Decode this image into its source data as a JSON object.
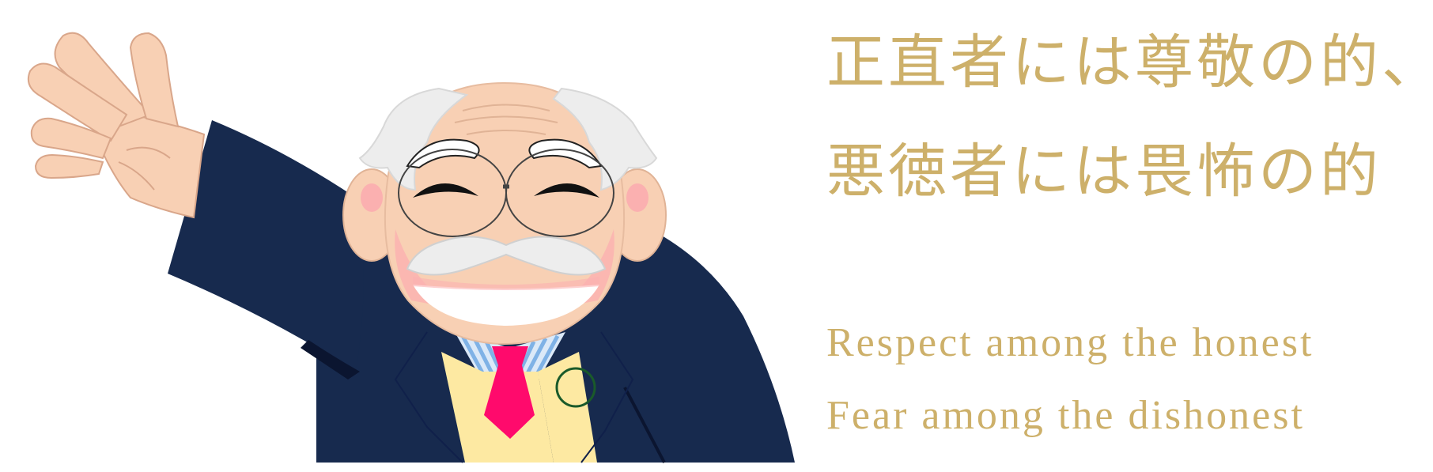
{
  "slogan": {
    "jp_line_1": "正直者には尊敬の的、",
    "jp_line_2": "悪徳者には畏怖の的",
    "en_line_1": "Respect among the honest",
    "en_line_2": "Fear among the dishonest"
  },
  "colors": {
    "text_gold": "#cdb06a",
    "suit_navy": "#172a4e",
    "skin": "#f8d0b4",
    "hair_white": "#ededed",
    "tie_pink": "#ff0a6c",
    "vest_yellow": "#fde9a2",
    "shirt_stripe_blue": "#7fb2e6",
    "cheek_pink": "#fbb0b0",
    "badge_green": "#1a5a2a"
  },
  "illustration": {
    "subject": "waving-old-man-with-mustache-and-glasses"
  }
}
